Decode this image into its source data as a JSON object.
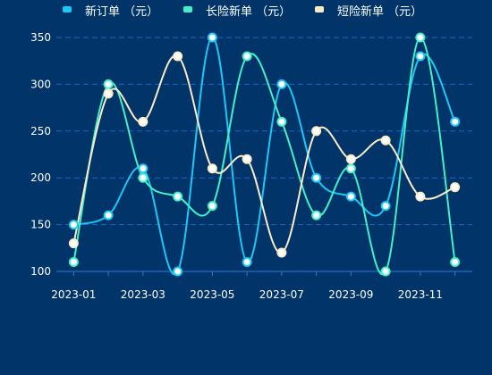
{
  "chart_data": {
    "type": "line",
    "smooth": true,
    "title": "",
    "xlabel": "",
    "ylabel": "",
    "x": [
      "2023-01",
      "2023-02",
      "2023-03",
      "2023-04",
      "2023-05",
      "2023-06",
      "2023-07",
      "2023-08",
      "2023-09",
      "2023-10",
      "2023-11",
      "2023-12"
    ],
    "x_tick_labels": [
      "2023-01",
      "2023-03",
      "2023-05",
      "2023-07",
      "2023-09",
      "2023-11"
    ],
    "ylim": [
      100,
      350
    ],
    "y_ticks": [
      100,
      150,
      200,
      250,
      300,
      350
    ],
    "grid": "horizontal-dashed",
    "legend": "top",
    "series": [
      {
        "name": "新订单 （元）",
        "color": "#1ec8f5",
        "values": [
          150,
          160,
          210,
          100,
          350,
          110,
          300,
          200,
          180,
          170,
          330,
          260
        ]
      },
      {
        "name": "长险新单 （元）",
        "color": "#45f0c8",
        "values": [
          110,
          300,
          200,
          180,
          170,
          330,
          260,
          160,
          210,
          100,
          350,
          110
        ]
      },
      {
        "name": "短险新单 （元）",
        "color": "#fbecc8",
        "values": [
          130,
          290,
          260,
          330,
          210,
          220,
          120,
          250,
          220,
          240,
          180,
          190
        ]
      }
    ]
  }
}
